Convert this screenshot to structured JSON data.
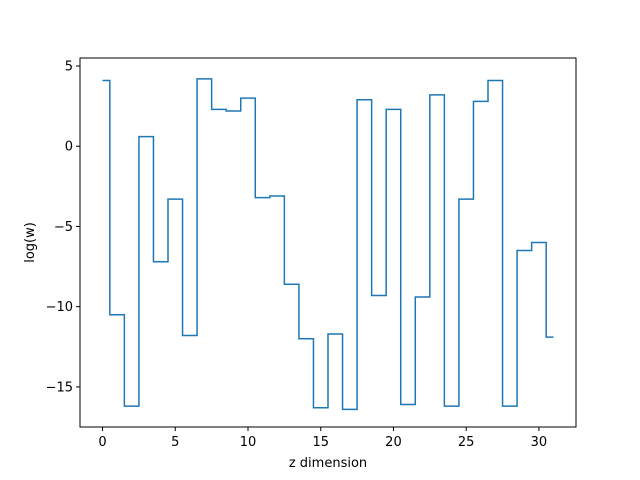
{
  "chart_data": {
    "type": "line",
    "step": "mid",
    "title": "",
    "xlabel": "z dimension",
    "ylabel": "log(w)",
    "xlim": [
      -1.55,
      32.55
    ],
    "ylim": [
      -17.5,
      5.5
    ],
    "xticks": [
      0,
      5,
      10,
      15,
      20,
      25,
      30
    ],
    "xtick_labels": [
      "0",
      "5",
      "10",
      "15",
      "20",
      "25",
      "30"
    ],
    "yticks": [
      5,
      0,
      -5,
      -10,
      -15
    ],
    "ytick_labels": [
      "5",
      "0",
      "−5",
      "−10",
      "−15"
    ],
    "grid": false,
    "legend": "none",
    "line_color": "#1f77b4",
    "series": [
      {
        "x": [
          0,
          1,
          2,
          3,
          4,
          5,
          6,
          7,
          8,
          9,
          10,
          11,
          12,
          13,
          14,
          15,
          16,
          17,
          18,
          19,
          20,
          21,
          22,
          23,
          24,
          25,
          26,
          27,
          28,
          29,
          30,
          31
        ],
        "values": [
          4.1,
          -10.5,
          -16.2,
          0.6,
          -7.2,
          -3.3,
          -11.8,
          4.2,
          2.3,
          2.2,
          3.0,
          -3.2,
          -3.1,
          -8.6,
          -12.0,
          -16.3,
          -11.7,
          -16.4,
          2.9,
          -9.3,
          2.3,
          -16.1,
          -9.4,
          3.2,
          -16.2,
          -3.3,
          2.8,
          4.1,
          -16.2,
          -6.5,
          -6.0,
          -11.9
        ]
      }
    ]
  }
}
